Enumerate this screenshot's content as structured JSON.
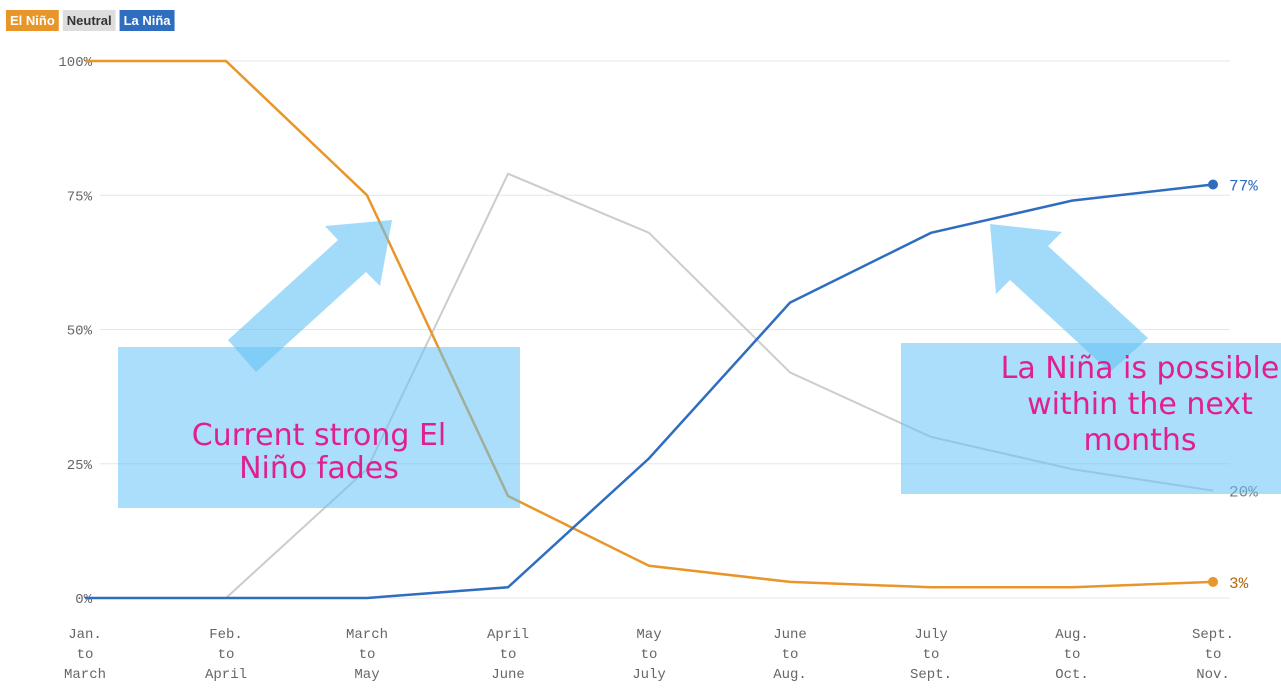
{
  "chart_data": {
    "type": "line",
    "categories": [
      "Jan. to March",
      "Feb. to April",
      "March to May",
      "April to June",
      "May to July",
      "June to Aug.",
      "July to Sept.",
      "Aug. to Oct.",
      "Sept. to Nov."
    ],
    "series": [
      {
        "name": "El Niño",
        "color": "#e8962a",
        "values": [
          100,
          100,
          75,
          19,
          6,
          3,
          2,
          2,
          3
        ],
        "value_labels": [
          null,
          null,
          null,
          null,
          null,
          null,
          null,
          null,
          "3%"
        ]
      },
      {
        "name": "Neutral",
        "color": "#cccccc",
        "values": [
          0,
          0,
          24,
          79,
          68,
          42,
          30,
          24,
          20
        ],
        "value_labels": [
          null,
          null,
          null,
          null,
          null,
          null,
          null,
          null,
          "20%"
        ]
      },
      {
        "name": "La Niña",
        "color": "#2f6dc0",
        "values": [
          0,
          0,
          0,
          2,
          26,
          55,
          68,
          74,
          77
        ],
        "value_labels": [
          null,
          null,
          null,
          null,
          null,
          null,
          null,
          null,
          "77%"
        ]
      }
    ],
    "ylim": [
      0,
      100
    ],
    "yticks": [
      {
        "value": 0,
        "label": "0%"
      },
      {
        "value": 25,
        "label": "25%"
      },
      {
        "value": 50,
        "label": "50%"
      },
      {
        "value": 75,
        "label": "75%"
      },
      {
        "value": 100,
        "label": "100%"
      }
    ],
    "grid": true,
    "annotations": [
      {
        "lines": [
          "Current strong El",
          "Niño fades"
        ]
      },
      {
        "lines": [
          "La Niña is possible",
          "within the next",
          "months"
        ]
      }
    ]
  }
}
